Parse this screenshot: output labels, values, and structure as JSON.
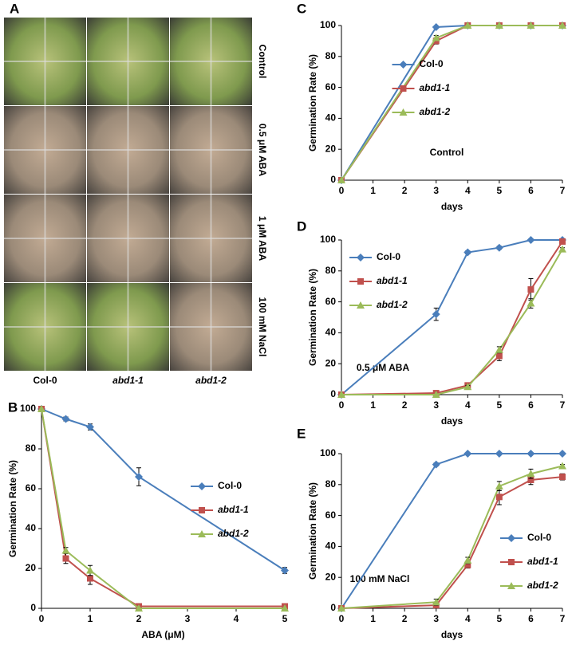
{
  "panel_a": {
    "label": "A",
    "row_labels": [
      "Control",
      "0.5 μM ABA",
      "1 μM ABA",
      "100 mM NaCl"
    ],
    "column_labels": [
      "Col-0",
      "abd1-1",
      "abd1-2"
    ]
  },
  "chart_data": [
    {
      "type": "line",
      "panel_label": "B",
      "xlabel": "ABA (μM)",
      "ylabel": "Germination Rate (%)",
      "x": [
        0,
        0.5,
        1,
        2,
        5
      ],
      "xlim": [
        0,
        5
      ],
      "xticks": [
        0,
        1,
        2,
        3,
        4,
        5
      ],
      "ylim": [
        0,
        100
      ],
      "yticks": [
        0,
        20,
        40,
        60,
        80,
        100
      ],
      "legend": "center right",
      "series": [
        {
          "name": "Col-0",
          "color": "#4a7ebb",
          "marker": "diamond",
          "values": [
            100,
            95,
            91,
            66,
            19
          ],
          "errors": [
            0,
            1,
            1.5,
            4.5,
            1.5
          ]
        },
        {
          "name": "abd1-1",
          "color": "#c0504d",
          "marker": "square",
          "values": [
            100,
            25,
            15,
            1,
            1
          ],
          "errors": [
            0,
            2.5,
            3,
            0.5,
            0.5
          ]
        },
        {
          "name": "abd1-2",
          "color": "#9bbb59",
          "marker": "triangle",
          "values": [
            100,
            29,
            19,
            0,
            0
          ],
          "errors": [
            0,
            1.5,
            2.5,
            0,
            0
          ]
        }
      ]
    },
    {
      "type": "line",
      "panel_label": "C",
      "xlabel": "days",
      "ylabel": "Germination Rate (%)",
      "annotation": "Control",
      "x": [
        0,
        3,
        4,
        5,
        6,
        7
      ],
      "xlim": [
        0,
        7
      ],
      "xticks": [
        0,
        1,
        2,
        3,
        4,
        5,
        6,
        7
      ],
      "ylim": [
        0,
        100
      ],
      "yticks": [
        0,
        20,
        40,
        60,
        80,
        100
      ],
      "legend": "center",
      "series": [
        {
          "name": "Col-0",
          "color": "#4a7ebb",
          "marker": "diamond",
          "values": [
            0,
            99,
            100,
            100,
            100,
            100
          ],
          "errors": [
            0,
            0.5,
            0,
            0,
            0,
            0
          ]
        },
        {
          "name": "abd1-1",
          "color": "#c0504d",
          "marker": "square",
          "values": [
            0,
            90,
            100,
            100,
            100,
            100
          ],
          "errors": [
            0,
            2,
            0,
            0,
            0,
            0
          ]
        },
        {
          "name": "abd1-2",
          "color": "#9bbb59",
          "marker": "triangle",
          "values": [
            0,
            92,
            100,
            100,
            100,
            100
          ],
          "errors": [
            0,
            1.5,
            0,
            0,
            0,
            0
          ]
        }
      ]
    },
    {
      "type": "line",
      "panel_label": "D",
      "xlabel": "days",
      "ylabel": "Germination Rate (%)",
      "annotation": "0.5 μM ABA",
      "x": [
        0,
        3,
        4,
        5,
        6,
        7
      ],
      "xlim": [
        0,
        7
      ],
      "xticks": [
        0,
        1,
        2,
        3,
        4,
        5,
        6,
        7
      ],
      "ylim": [
        0,
        100
      ],
      "yticks": [
        0,
        20,
        40,
        60,
        80,
        100
      ],
      "legend": "upper left",
      "series": [
        {
          "name": "Col-0",
          "color": "#4a7ebb",
          "marker": "diamond",
          "values": [
            0,
            52,
            92,
            95,
            100,
            100
          ],
          "errors": [
            0,
            4,
            1,
            1,
            0,
            0
          ]
        },
        {
          "name": "abd1-1",
          "color": "#c0504d",
          "marker": "square",
          "values": [
            0,
            1,
            6,
            25,
            68,
            99
          ],
          "errors": [
            0,
            1,
            1,
            3,
            7,
            1
          ]
        },
        {
          "name": "abd1-2",
          "color": "#9bbb59",
          "marker": "triangle",
          "values": [
            0,
            0,
            5,
            29,
            59,
            94
          ],
          "errors": [
            0,
            0,
            1,
            2,
            3,
            1
          ]
        }
      ]
    },
    {
      "type": "line",
      "panel_label": "E",
      "xlabel": "days",
      "ylabel": "Germination Rate (%)",
      "annotation": "100 mM NaCl",
      "x": [
        0,
        3,
        4,
        5,
        6,
        7
      ],
      "xlim": [
        0,
        7
      ],
      "xticks": [
        0,
        1,
        2,
        3,
        4,
        5,
        6,
        7
      ],
      "ylim": [
        0,
        100
      ],
      "yticks": [
        0,
        20,
        40,
        60,
        80,
        100
      ],
      "legend": "lower right",
      "series": [
        {
          "name": "Col-0",
          "color": "#4a7ebb",
          "marker": "diamond",
          "values": [
            0,
            93,
            100,
            100,
            100,
            100
          ],
          "errors": [
            0,
            1,
            0,
            0,
            0,
            0
          ]
        },
        {
          "name": "abd1-1",
          "color": "#c0504d",
          "marker": "square",
          "values": [
            0,
            2,
            28,
            72,
            83,
            85
          ],
          "errors": [
            0,
            1,
            2,
            5,
            3,
            2
          ]
        },
        {
          "name": "abd1-2",
          "color": "#9bbb59",
          "marker": "triangle",
          "values": [
            0,
            4,
            31,
            79,
            87,
            92
          ],
          "errors": [
            0,
            2,
            2,
            3,
            3,
            1
          ]
        }
      ]
    }
  ]
}
